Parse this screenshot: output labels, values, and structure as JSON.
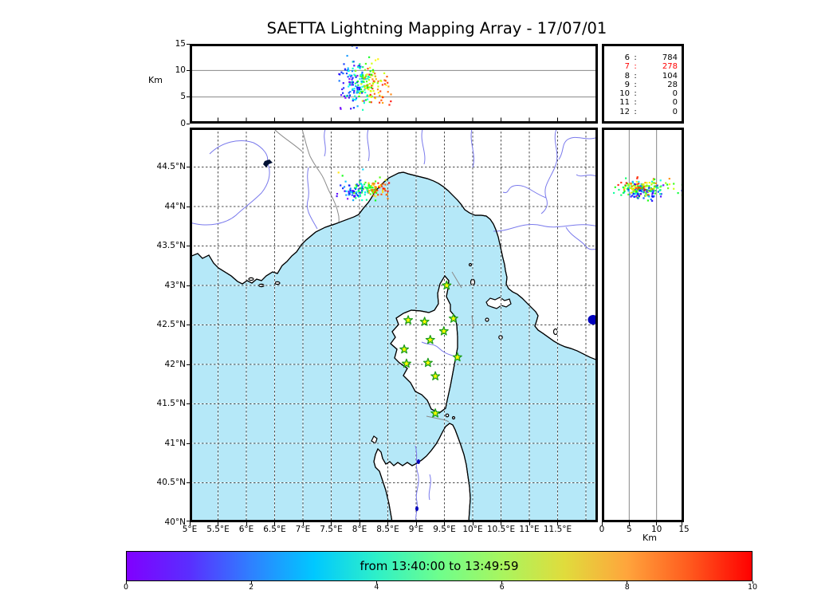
{
  "title": "SAETTA Lightning Mapping Array - 17/07/01",
  "station_stats": {
    "rows": [
      {
        "id": "6",
        "count": "784",
        "highlight": false
      },
      {
        "id": "7",
        "count": "278",
        "highlight": true
      },
      {
        "id": "8",
        "count": "104",
        "highlight": false
      },
      {
        "id": "9",
        "count": "28",
        "highlight": false
      },
      {
        "id": "10",
        "count": "0",
        "highlight": false
      },
      {
        "id": "11",
        "count": "0",
        "highlight": false
      },
      {
        "id": "12",
        "count": "0",
        "highlight": false
      }
    ],
    "highlight_color": "#ff0000",
    "normal_color": "#000000"
  },
  "axes": {
    "lat_ticks": [
      {
        "label": "40°N",
        "value": 40.0
      },
      {
        "label": "40.5°N",
        "value": 40.5
      },
      {
        "label": "41°N",
        "value": 41.0
      },
      {
        "label": "41.5°N",
        "value": 41.5
      },
      {
        "label": "42°N",
        "value": 42.0
      },
      {
        "label": "42.5°N",
        "value": 42.5
      },
      {
        "label": "43°N",
        "value": 43.0
      },
      {
        "label": "43.5°N",
        "value": 43.5
      },
      {
        "label": "44°N",
        "value": 44.0
      },
      {
        "label": "44.5°N",
        "value": 44.5
      }
    ],
    "lon_ticks": [
      {
        "label": "5°E",
        "value": 5.0
      },
      {
        "label": "5.5°E",
        "value": 5.5
      },
      {
        "label": "6°E",
        "value": 6.0
      },
      {
        "label": "6.5°E",
        "value": 6.5
      },
      {
        "label": "7°E",
        "value": 7.0
      },
      {
        "label": "7.5°E",
        "value": 7.5
      },
      {
        "label": "8°E",
        "value": 8.0
      },
      {
        "label": "8.5°E",
        "value": 8.5
      },
      {
        "label": "9°E",
        "value": 9.0
      },
      {
        "label": "9.5°E",
        "value": 9.5
      },
      {
        "label": "10°E",
        "value": 10.0
      },
      {
        "label": "10.5°E",
        "value": 10.5
      },
      {
        "label": "11°E",
        "value": 11.0
      },
      {
        "label": "11.5°E",
        "value": 11.5
      }
    ],
    "alt_ticks": [
      {
        "label": "0",
        "value": 0
      },
      {
        "label": "5",
        "value": 5
      },
      {
        "label": "10",
        "value": 10
      },
      {
        "label": "15",
        "value": 15
      }
    ],
    "alt_unit_label": "Km"
  },
  "colorbar": {
    "label": "from 13:40:00 to 13:49:59",
    "ticks": [
      {
        "label": "0",
        "value": 0
      },
      {
        "label": "2",
        "value": 2
      },
      {
        "label": "4",
        "value": 4
      },
      {
        "label": "6",
        "value": 6
      },
      {
        "label": "8",
        "value": 8
      },
      {
        "label": "10",
        "value": 10
      }
    ],
    "min": 0,
    "max": 10,
    "gradient": [
      "#8000FF",
      "#5A2EFF",
      "#2E81FF",
      "#00C8FF",
      "#2EF0C8",
      "#6EFE8C",
      "#A8F55F",
      "#E0DC3C",
      "#FFA53C",
      "#FF5A1E",
      "#FF0000"
    ]
  },
  "map_colors": {
    "sea": "#B5E8F8",
    "land": "#FFFFFF",
    "coast": "#000000",
    "river": "#7A7AEC",
    "country_border": "#8A8A8A",
    "grid": "#4D4D4D",
    "lake": "#0000BB",
    "star_fill": "#FFFF00",
    "star_stroke": "#1E9E1E"
  },
  "chart_data": {
    "type": "scatter",
    "description": "Lightning Mapping Array VHF sources: plan view (lon/lat) with altitude-longitude top profile and altitude-latitude right profile, colored by time",
    "axes_ranges": {
      "lon_deg_e": [
        5.0,
        12.21
      ],
      "lat_deg_n": [
        40.0,
        45.0
      ],
      "alt_km": [
        0,
        15
      ]
    },
    "stations_lma": [
      [
        9.54,
        43.0
      ],
      [
        8.86,
        42.56
      ],
      [
        9.15,
        42.54
      ],
      [
        9.66,
        42.58
      ],
      [
        9.49,
        42.42
      ],
      [
        9.25,
        42.31
      ],
      [
        8.79,
        42.19
      ],
      [
        9.73,
        42.09
      ],
      [
        9.21,
        42.02
      ],
      [
        8.83,
        42.01
      ],
      [
        9.34,
        41.85
      ],
      [
        9.34,
        41.38
      ]
    ],
    "flash_cluster": {
      "lon_center": 8.08,
      "lat_center": 44.22,
      "alt_center_km": 7.2,
      "lon_sigma": 0.11,
      "lat_sigma": 0.055,
      "alt_sigma_km": 1.9,
      "lon_time_drift": 0.55,
      "lat_time_drift": 0.09,
      "n_map_points": 150,
      "n_profile_points": 240,
      "high_alt_fraction": 0.07
    },
    "stray_points": [
      {
        "lon": 7.63,
        "lat": 44.43,
        "t": 0.8
      },
      {
        "lon": 7.7,
        "lat": 44.39,
        "t": 0.55
      },
      {
        "lon": 8.06,
        "lat": 44.47,
        "t": 0.3
      },
      {
        "lon": 8.5,
        "lat": 44.1,
        "t": 0.9
      }
    ],
    "station_source_counts": {
      "labels": [
        "6",
        "7",
        "8",
        "9",
        "10",
        "11",
        "12"
      ],
      "values": [
        784,
        278,
        104,
        28,
        0,
        0,
        0
      ],
      "highlighted": "7"
    },
    "time_window": {
      "start": "13:40:00",
      "end": "13:49:59"
    },
    "colorbar_range": [
      0,
      10
    ]
  }
}
